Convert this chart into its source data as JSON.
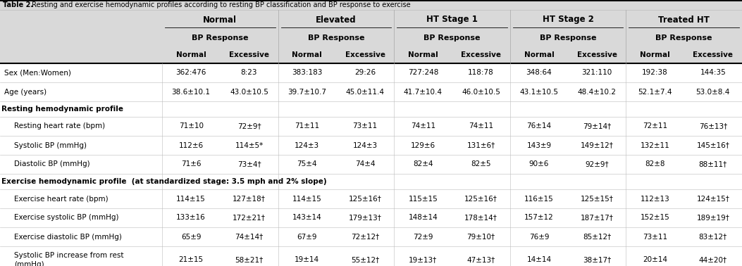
{
  "title_bold": "Table 2.",
  "title_rest": " Resting and exercise hemodynamic profiles according to resting BP classification and BP response to exercise",
  "col_groups": [
    "Normal",
    "Elevated",
    "HT Stage 1",
    "HT Stage 2",
    "Treated HT"
  ],
  "col_subgroups": [
    "BP Response",
    "BP Response",
    "BP Response",
    "BP Response",
    "BP Response"
  ],
  "col_headers": [
    "Normal",
    "Excessive",
    "Normal",
    "Excessive",
    "Normal",
    "Excessive",
    "Normal",
    "Excessive",
    "Normal",
    "Excessive"
  ],
  "data": [
    [
      "362:476",
      "8:23",
      "383:183",
      "29:26",
      "727:248",
      "118:78",
      "348:64",
      "321:110",
      "192:38",
      "144:35"
    ],
    [
      "38.6±10.1",
      "43.0±10.5",
      "39.7±10.7",
      "45.0±11.4",
      "41.7±10.4",
      "46.0±10.5",
      "43.1±10.5",
      "48.4±10.2",
      "52.1±7.4",
      "53.0±8.4"
    ],
    [
      "71±10",
      "72±9†",
      "71±11",
      "73±11",
      "74±11",
      "74±11",
      "76±14",
      "79±14†",
      "72±11",
      "76±13†"
    ],
    [
      "112±6",
      "114±5*",
      "124±3",
      "124±3",
      "129±6",
      "131±6†",
      "143±9",
      "149±12†",
      "132±11",
      "145±16†"
    ],
    [
      "71±6",
      "73±4†",
      "75±4",
      "74±4",
      "82±4",
      "82±5",
      "90±6",
      "92±9†",
      "82±8",
      "88±11†"
    ],
    [
      "114±15",
      "127±18†",
      "114±15",
      "125±16†",
      "115±15",
      "125±16†",
      "116±15",
      "125±15†",
      "112±13",
      "124±15†"
    ],
    [
      "133±16",
      "172±21†",
      "143±14",
      "179±13†",
      "148±14",
      "178±14†",
      "157±12",
      "187±17†",
      "152±15",
      "189±19†"
    ],
    [
      "65±9",
      "74±14†",
      "67±9",
      "72±12†",
      "72±9",
      "79±10†",
      "76±9",
      "85±12†",
      "73±11",
      "83±12†"
    ],
    [
      "21±15",
      "58±21†",
      "19±14",
      "55±12†",
      "19±13†",
      "47±13†",
      "14±14",
      "38±17†",
      "20±14",
      "44±20†"
    ]
  ],
  "row_labels": [
    "Sex (Men:Women)",
    "Age (years)",
    "Resting hemodynamic profile",
    "Resting heart rate (bpm)",
    "Systolic BP (mmHg)",
    "Diastolic BP (mmHg)",
    "Exercise hemodynamic profile  (at standardized stage: 3.5 mph and 2% slope)",
    "Exercise heart rate (bpm)",
    "Exercise systolic BP (mmHg)",
    "Exercise diastolic BP (mmHg)",
    "Systolic BP increase from rest\n(mmHg)"
  ],
  "section_rows": [
    2,
    6
  ],
  "data_row_map": [
    0,
    1,
    -1,
    2,
    3,
    4,
    -1,
    5,
    6,
    7,
    8
  ],
  "indented_rows": [
    3,
    4,
    5,
    7,
    8,
    9,
    10
  ],
  "bg_gray": "#d9d9d9",
  "bg_white": "#ffffff",
  "line_color_heavy": "#000000",
  "line_color_light": "#bbbbbb"
}
